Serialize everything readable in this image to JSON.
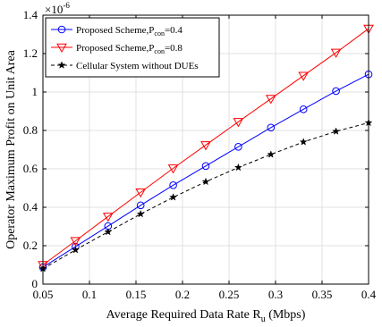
{
  "chart_data": {
    "type": "line",
    "xlabel": "Average Required Data Rate R",
    "xlabel_sub": "u",
    "xlabel_tail": " (Mbps)",
    "ylabel": "Operator Maximum Profit on Unit Area",
    "y_multiplier": "×10",
    "y_multiplier_exp": "-6",
    "xlim": [
      0.05,
      0.4
    ],
    "ylim": [
      0,
      1.4
    ],
    "x_ticks": [
      "0.05",
      "0.1",
      "0.15",
      "0.2",
      "0.25",
      "0.3",
      "0.35",
      "0.4"
    ],
    "y_ticks": [
      "0",
      "0.2",
      "0.4",
      "0.6",
      "0.8",
      "1",
      "1.2",
      "1.4"
    ],
    "grid": true,
    "legend_position": "top-left",
    "x": [
      0.05,
      0.085,
      0.12,
      0.155,
      0.19,
      0.225,
      0.26,
      0.295,
      0.33,
      0.365,
      0.4
    ],
    "series": [
      {
        "name": "Proposed Scheme,P",
        "name_sub": "con",
        "name_tail": "=0.4",
        "color": "#0000ff",
        "marker": "circle",
        "line_style": "solid",
        "values": [
          0.088,
          0.195,
          0.302,
          0.41,
          0.515,
          0.615,
          0.715,
          0.815,
          0.91,
          1.005,
          1.092
        ]
      },
      {
        "name": "Proposed Scheme,P",
        "name_sub": "con",
        "name_tail": "=0.8",
        "color": "#ff0000",
        "marker": "triangle-down",
        "line_style": "solid",
        "values": [
          0.1,
          0.225,
          0.352,
          0.478,
          0.603,
          0.724,
          0.845,
          0.965,
          1.085,
          1.205,
          1.33
        ]
      },
      {
        "name": "Cellular System without DUEs",
        "name_sub": "",
        "name_tail": "",
        "color": "#000000",
        "marker": "star",
        "line_style": "dashed",
        "values": [
          0.08,
          0.178,
          0.272,
          0.365,
          0.452,
          0.533,
          0.607,
          0.675,
          0.74,
          0.795,
          0.84
        ]
      }
    ]
  }
}
